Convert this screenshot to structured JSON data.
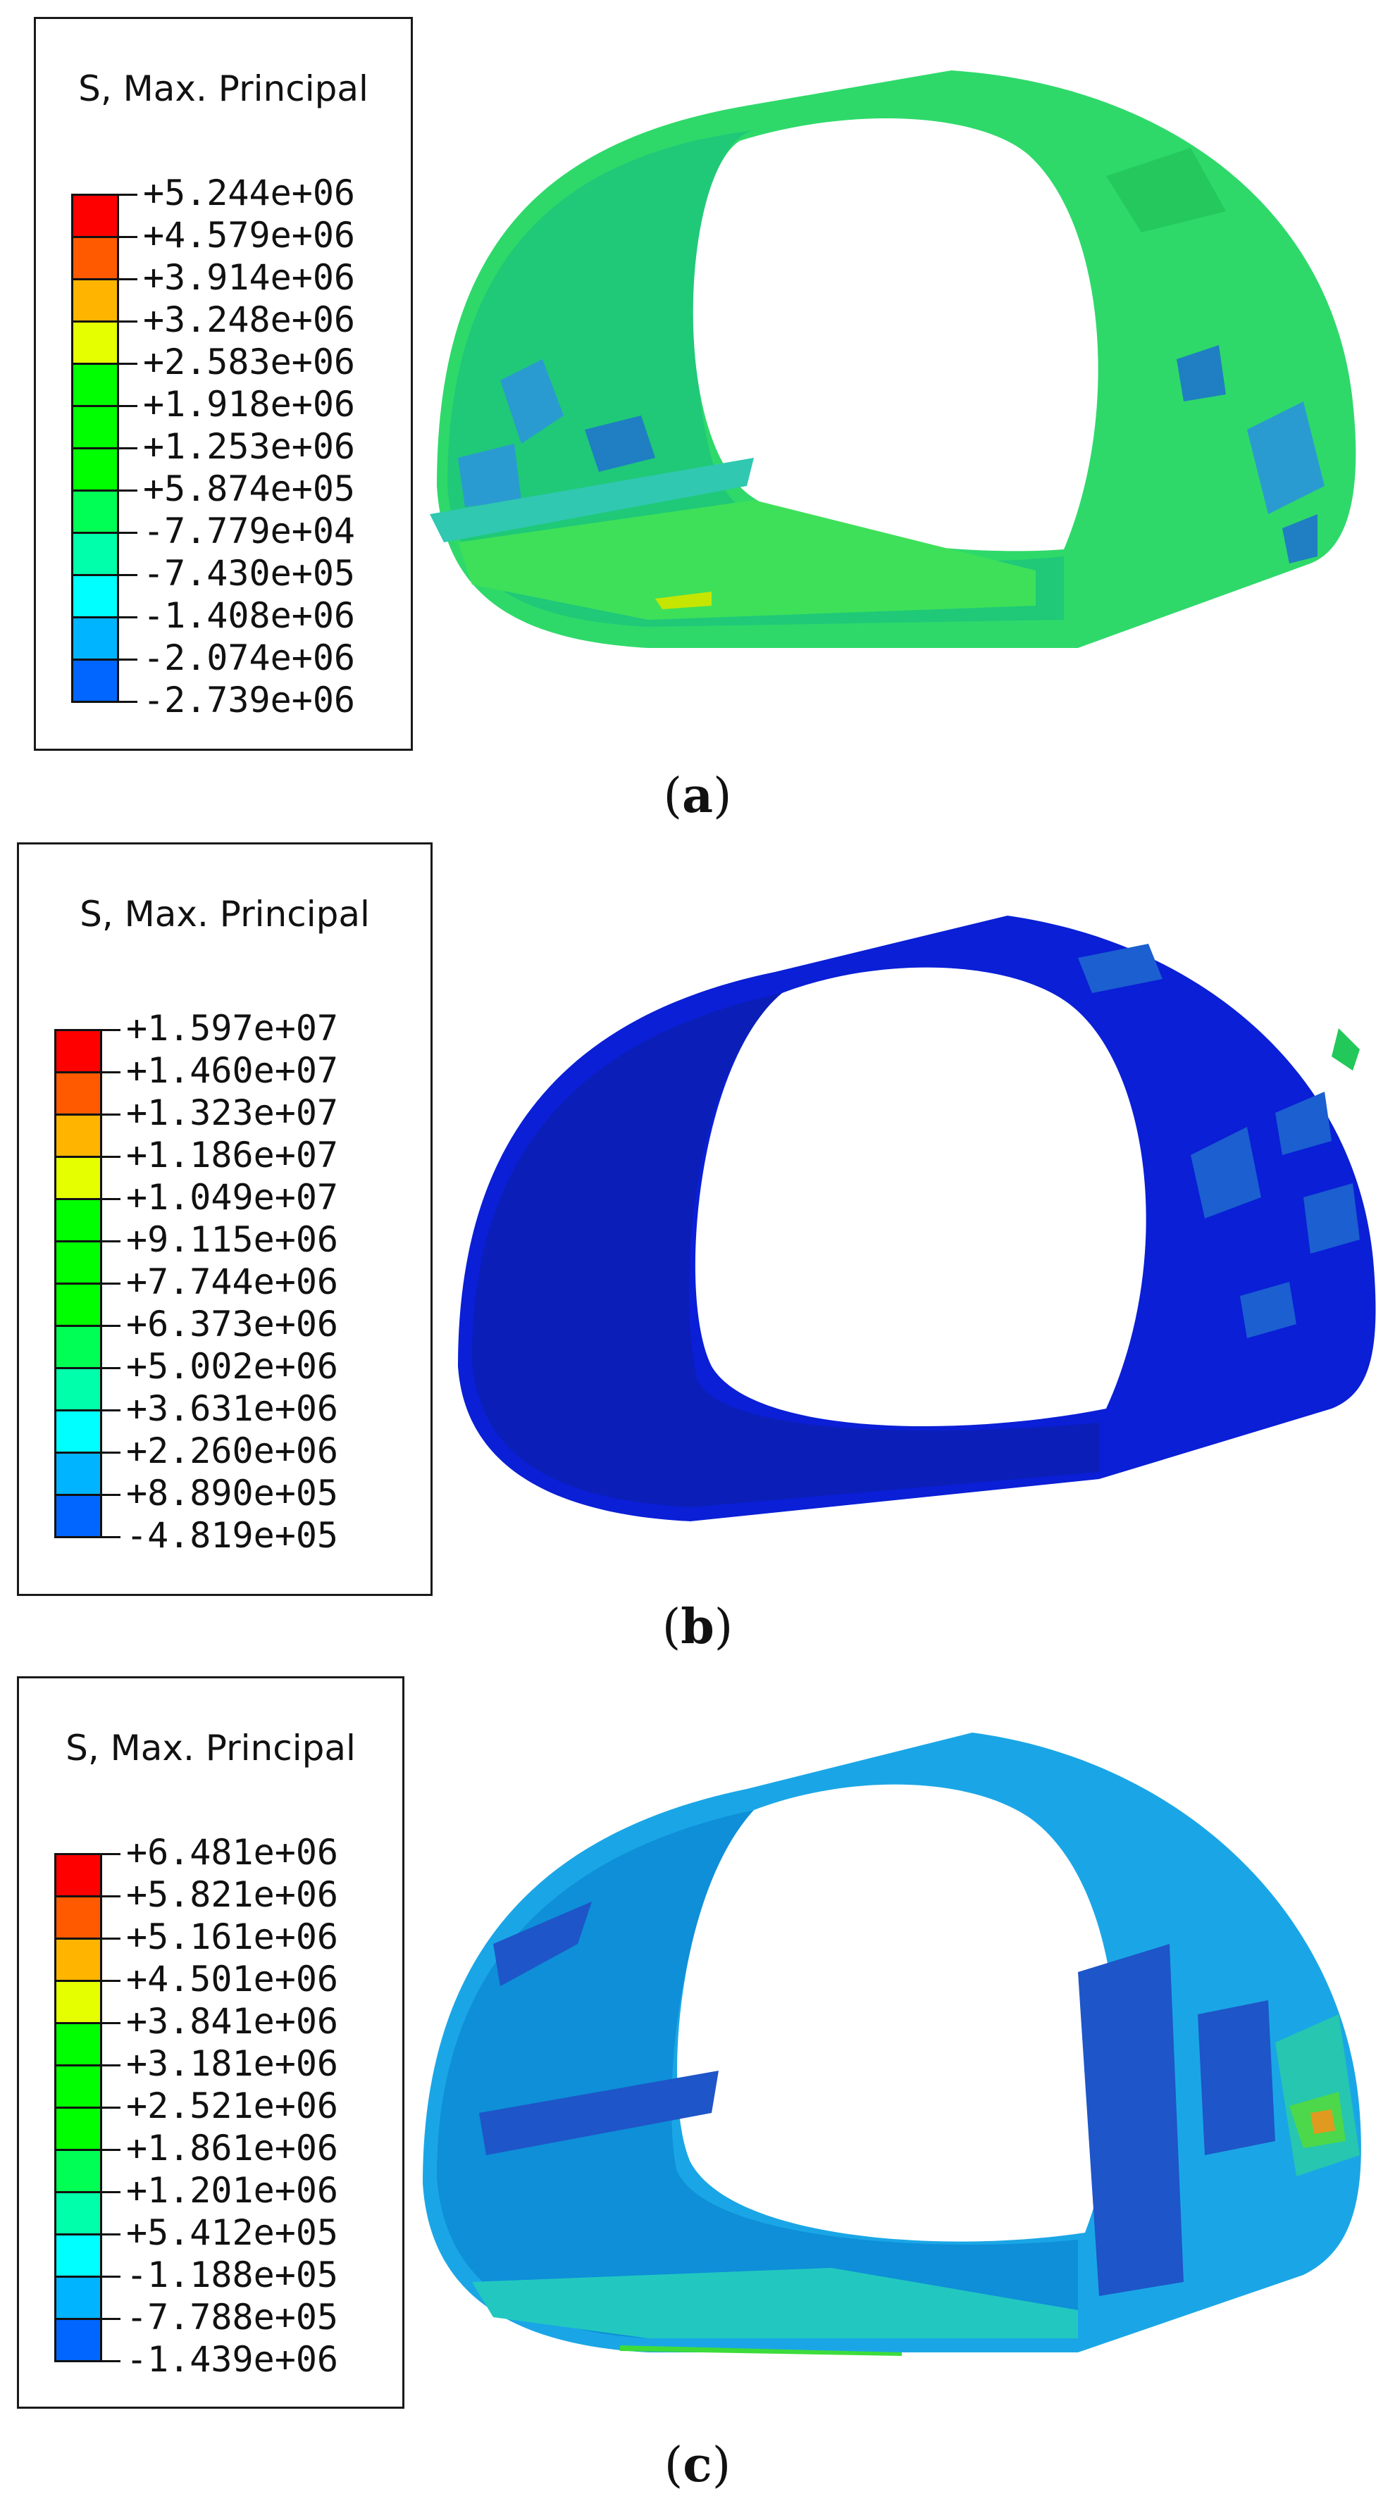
{
  "panels": [
    {
      "id": "a",
      "legend": {
        "title": "S, Max. Principal",
        "values": [
          "+5.244e+06",
          "+4.579e+06",
          "+3.914e+06",
          "+3.248e+06",
          "+2.583e+06",
          "+1.918e+06",
          "+1.253e+06",
          "+5.874e+05",
          "-7.779e+04",
          "-7.430e+05",
          "-1.408e+06",
          "-2.074e+06",
          "-2.739e+06"
        ]
      },
      "caption_open": "(",
      "caption_letter": "a",
      "caption_close": ")"
    },
    {
      "id": "b",
      "legend": {
        "title": "S, Max. Principal",
        "values": [
          "+1.597e+07",
          "+1.460e+07",
          "+1.323e+07",
          "+1.186e+07",
          "+1.049e+07",
          "+9.115e+06",
          "+7.744e+06",
          "+6.373e+06",
          "+5.002e+06",
          "+3.631e+06",
          "+2.260e+06",
          "+8.890e+05",
          "-4.819e+05"
        ]
      },
      "caption_open": "(",
      "caption_letter": "b",
      "caption_close": ")"
    },
    {
      "id": "c",
      "legend": {
        "title": "S, Max. Principal",
        "values": [
          "+6.481e+06",
          "+5.821e+06",
          "+5.161e+06",
          "+4.501e+06",
          "+3.841e+06",
          "+3.181e+06",
          "+2.521e+06",
          "+1.861e+06",
          "+1.201e+06",
          "+5.412e+05",
          "-1.188e+05",
          "-7.788e+05",
          "-1.439e+06"
        ]
      },
      "caption_open": "(",
      "caption_letter": "c",
      "caption_close": ")"
    }
  ],
  "colorbar": [
    "#ff0000",
    "#ff5a00",
    "#ffb400",
    "#e6ff00",
    "#00ff00",
    "#00ff00",
    "#00ff00",
    "#00ff55",
    "#00ffaa",
    "#00ffff",
    "#00b4ff",
    "#0066ff",
    "#0000ff"
  ],
  "contour_colors": {
    "a_main": "#2ed96a",
    "a_inner": "#1fc978",
    "a_patch": "#2a9bd0",
    "a_dark": "#1f7fc2",
    "b_main": "#0a1fd6",
    "b_inner": "#0b1fb8",
    "b_patch": "#1b5fd0",
    "c_main": "#1aa6e6",
    "c_inner": "#0e8fd8",
    "c_patch": "#1e55c8",
    "c_hot": "#4cd84a"
  }
}
